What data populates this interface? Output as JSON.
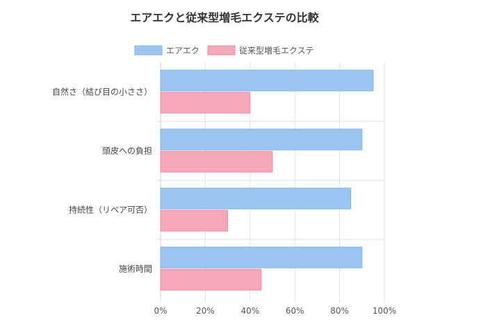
{
  "chart_data": {
    "type": "bar",
    "orientation": "horizontal",
    "title": "エアエクと従来型増毛エクステの比較",
    "categories": [
      "自然さ（結び目の小ささ）",
      "頭皮への負担",
      "持続性（リペア可否）",
      "施術時間"
    ],
    "series": [
      {
        "name": "エアエク",
        "values": [
          95,
          90,
          85,
          90
        ],
        "color": "#9cc6f0",
        "border": "#7fb2e6"
      },
      {
        "name": "従来型増毛エクステ",
        "values": [
          40,
          50,
          30,
          45
        ],
        "color": "#f4a8b8",
        "border": "#e88aa0"
      }
    ],
    "x_ticks": [
      "0%",
      "20%",
      "40%",
      "60%",
      "80%",
      "100%"
    ],
    "xlim": [
      0,
      100
    ],
    "xlabel": "",
    "ylabel": "",
    "grid": true,
    "legend_position": "top"
  }
}
